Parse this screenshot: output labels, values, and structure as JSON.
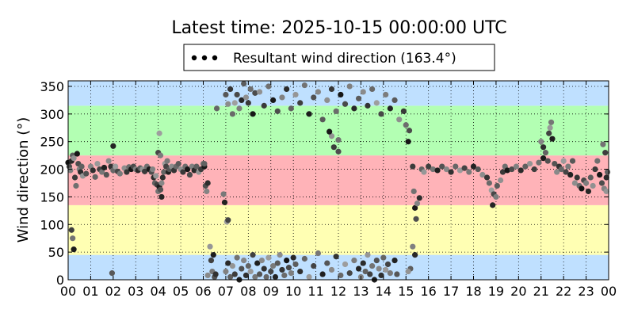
{
  "chart_data": {
    "type": "scatter",
    "title": "Latest time: 2025-10-15 00:00:00 UTC",
    "ylabel": "Wind direction (°)",
    "xlabel": "",
    "xlim": [
      0,
      24
    ],
    "ylim": [
      0,
      360
    ],
    "grid": true,
    "legend": {
      "placement": "top-center",
      "label": "Resultant wind direction (163.4°)",
      "marker_color": "#000000"
    },
    "x_tick_labels": [
      "00",
      "01",
      "02",
      "03",
      "04",
      "05",
      "06",
      "07",
      "08",
      "09",
      "10",
      "11",
      "12",
      "13",
      "14",
      "15",
      "16",
      "17",
      "18",
      "19",
      "20",
      "21",
      "22",
      "23",
      "00"
    ],
    "y_ticks": [
      0,
      50,
      100,
      150,
      200,
      250,
      300,
      350
    ],
    "bands": [
      {
        "from": 0,
        "to": 45,
        "color": "#bfe0ff"
      },
      {
        "from": 45,
        "to": 135,
        "color": "#ffffb3"
      },
      {
        "from": 135,
        "to": 225,
        "color": "#ffb3b8"
      },
      {
        "from": 225,
        "to": 315,
        "color": "#b3ffb3"
      },
      {
        "from": 315,
        "to": 360,
        "color": "#bfe0ff"
      }
    ],
    "series": [
      {
        "color_range": [
          "#111111",
          "#aaaaaa"
        ],
        "points": [
          [
            0.0,
            212
          ],
          [
            0.05,
            205
          ],
          [
            0.1,
            198
          ],
          [
            0.15,
            215
          ],
          [
            0.2,
            225
          ],
          [
            0.25,
            220
          ],
          [
            0.3,
            185
          ],
          [
            0.35,
            170
          ],
          [
            0.4,
            228
          ],
          [
            0.45,
            210
          ],
          [
            0.5,
            200
          ],
          [
            0.55,
            195
          ],
          [
            0.6,
            205
          ],
          [
            0.65,
            188
          ],
          [
            0.15,
            90
          ],
          [
            0.2,
            75
          ],
          [
            0.25,
            55
          ],
          [
            0.8,
            192
          ],
          [
            1.0,
            205
          ],
          [
            1.1,
            198
          ],
          [
            1.2,
            186
          ],
          [
            1.3,
            210
          ],
          [
            1.4,
            200
          ],
          [
            1.5,
            195
          ],
          [
            1.6,
            203
          ],
          [
            1.7,
            190
          ],
          [
            1.8,
            215
          ],
          [
            1.9,
            205
          ],
          [
            2.0,
            198
          ],
          [
            2.1,
            205
          ],
          [
            2.2,
            196
          ],
          [
            2.3,
            192
          ],
          [
            2.0,
            242
          ],
          [
            1.95,
            12
          ],
          [
            2.5,
            202
          ],
          [
            2.6,
            195
          ],
          [
            2.7,
            204
          ],
          [
            2.8,
            200
          ],
          [
            2.9,
            205
          ],
          [
            3.0,
            200
          ],
          [
            3.1,
            198
          ],
          [
            3.2,
            202
          ],
          [
            3.3,
            200
          ],
          [
            3.4,
            196
          ],
          [
            3.5,
            205
          ],
          [
            3.6,
            200
          ],
          [
            3.7,
            195
          ],
          [
            3.75,
            200
          ],
          [
            3.8,
            185
          ],
          [
            3.85,
            175
          ],
          [
            3.9,
            188
          ],
          [
            3.95,
            172
          ],
          [
            4.0,
            160
          ],
          [
            4.05,
            168
          ],
          [
            4.1,
            163
          ],
          [
            4.15,
            175
          ],
          [
            4.2,
            185
          ],
          [
            4.25,
            195
          ],
          [
            4.3,
            210
          ],
          [
            4.35,
            205
          ],
          [
            4.4,
            215
          ],
          [
            4.45,
            195
          ],
          [
            4.5,
            200
          ],
          [
            4.6,
            205
          ],
          [
            4.7,
            198
          ],
          [
            4.8,
            205
          ],
          [
            4.05,
            265
          ],
          [
            4.0,
            230
          ],
          [
            4.1,
            225
          ],
          [
            4.15,
            150
          ],
          [
            4.9,
            210
          ],
          [
            5.0,
            200
          ],
          [
            5.1,
            195
          ],
          [
            5.2,
            205
          ],
          [
            5.3,
            200
          ],
          [
            5.4,
            190
          ],
          [
            5.5,
            205
          ],
          [
            5.6,
            198
          ],
          [
            5.7,
            205
          ],
          [
            5.8,
            195
          ],
          [
            5.9,
            200
          ],
          [
            6.0,
            210
          ],
          [
            6.05,
            205
          ],
          [
            6.1,
            170
          ],
          [
            6.15,
            160
          ],
          [
            6.2,
            175
          ],
          [
            6.05,
            210
          ],
          [
            6.3,
            60
          ],
          [
            6.35,
            35
          ],
          [
            6.4,
            15
          ],
          [
            6.45,
            45
          ],
          [
            6.5,
            5
          ],
          [
            6.2,
            8
          ],
          [
            6.55,
            10
          ],
          [
            6.6,
            310
          ],
          [
            7.05,
            105
          ],
          [
            7.1,
            108
          ],
          [
            6.9,
            155
          ],
          [
            6.95,
            140
          ],
          [
            7.0,
            335
          ],
          [
            7.1,
            318
          ],
          [
            7.2,
            345
          ],
          [
            7.3,
            300
          ],
          [
            7.4,
            320
          ],
          [
            7.5,
            335
          ],
          [
            7.6,
            310
          ],
          [
            7.7,
            325
          ],
          [
            7.8,
            355
          ],
          [
            7.9,
            330
          ],
          [
            8.0,
            320
          ],
          [
            8.1,
            345
          ],
          [
            8.2,
            300
          ],
          [
            8.3,
            338
          ],
          [
            7.0,
            15
          ],
          [
            7.1,
            30
          ],
          [
            7.2,
            5
          ],
          [
            7.3,
            25
          ],
          [
            7.4,
            10
          ],
          [
            7.5,
            40
          ],
          [
            7.6,
            0
          ],
          [
            7.7,
            20
          ],
          [
            7.8,
            35
          ],
          [
            7.9,
            8
          ],
          [
            8.0,
            25
          ],
          [
            8.1,
            15
          ],
          [
            8.2,
            45
          ],
          [
            8.3,
            5
          ],
          [
            8.4,
            30
          ],
          [
            8.5,
            10
          ],
          [
            8.6,
            35
          ],
          [
            8.7,
            20
          ],
          [
            8.8,
            5
          ],
          [
            8.9,
            40
          ],
          [
            9.0,
            15
          ],
          [
            9.1,
            25
          ],
          [
            9.2,
            5
          ],
          [
            9.3,
            30
          ],
          [
            9.4,
            45
          ],
          [
            9.5,
            18
          ],
          [
            9.6,
            8
          ],
          [
            9.7,
            35
          ],
          [
            9.8,
            22
          ],
          [
            9.9,
            12
          ],
          [
            10.0,
            40
          ],
          [
            10.1,
            28
          ],
          [
            8.5,
            340
          ],
          [
            8.7,
            315
          ],
          [
            8.9,
            350
          ],
          [
            9.1,
            325
          ],
          [
            9.3,
            305
          ],
          [
            9.5,
            330
          ],
          [
            9.7,
            345
          ],
          [
            9.9,
            310
          ],
          [
            10.1,
            335
          ],
          [
            10.3,
            320
          ],
          [
            10.5,
            352
          ],
          [
            10.7,
            300
          ],
          [
            10.9,
            330
          ],
          [
            11.1,
            340
          ],
          [
            10.3,
            15
          ],
          [
            10.5,
            38
          ],
          [
            10.7,
            5
          ],
          [
            10.9,
            25
          ],
          [
            11.1,
            48
          ],
          [
            11.3,
            10
          ],
          [
            11.5,
            30
          ],
          [
            11.7,
            18
          ],
          [
            11.9,
            42
          ],
          [
            12.1,
            8
          ],
          [
            12.3,
            28
          ],
          [
            12.5,
            12
          ],
          [
            12.7,
            35
          ],
          [
            12.9,
            20
          ],
          [
            11.3,
            290
          ],
          [
            11.5,
            325
          ],
          [
            11.7,
            345
          ],
          [
            11.9,
            305
          ],
          [
            12.1,
            335
          ],
          [
            12.3,
            318
          ],
          [
            12.5,
            350
          ],
          [
            12.7,
            310
          ],
          [
            12.9,
            328
          ],
          [
            11.7,
            260
          ],
          [
            11.8,
            240
          ],
          [
            12.0,
            253
          ],
          [
            11.6,
            268
          ],
          [
            12.0,
            232
          ],
          [
            13.0,
            5
          ],
          [
            13.1,
            30
          ],
          [
            13.2,
            15
          ],
          [
            13.3,
            45
          ],
          [
            13.4,
            10
          ],
          [
            13.5,
            25
          ],
          [
            13.6,
            0
          ],
          [
            13.7,
            35
          ],
          [
            13.8,
            20
          ],
          [
            13.9,
            8
          ],
          [
            14.0,
            40
          ],
          [
            14.1,
            18
          ],
          [
            14.2,
            28
          ],
          [
            14.3,
            12
          ],
          [
            14.5,
            35
          ],
          [
            14.6,
            10
          ],
          [
            13.1,
            340
          ],
          [
            13.3,
            315
          ],
          [
            13.5,
            345
          ],
          [
            13.7,
            320
          ],
          [
            13.9,
            300
          ],
          [
            14.1,
            335
          ],
          [
            14.3,
            310
          ],
          [
            14.5,
            325
          ],
          [
            14.7,
            290
          ],
          [
            14.9,
            305
          ],
          [
            15.0,
            280
          ],
          [
            15.1,
            250
          ],
          [
            15.15,
            270
          ],
          [
            15.3,
            60
          ],
          [
            15.4,
            45
          ],
          [
            15.2,
            20
          ],
          [
            15.1,
            15
          ],
          [
            15.3,
            205
          ],
          [
            15.35,
            160
          ],
          [
            15.4,
            130
          ],
          [
            15.45,
            110
          ],
          [
            15.5,
            138
          ],
          [
            15.6,
            148
          ],
          [
            15.7,
            200
          ],
          [
            15.8,
            195
          ],
          [
            16.0,
            205
          ],
          [
            16.2,
            200
          ],
          [
            16.4,
            198
          ],
          [
            16.6,
            205
          ],
          [
            16.8,
            200
          ],
          [
            17.0,
            195
          ],
          [
            17.2,
            205
          ],
          [
            17.4,
            198
          ],
          [
            17.6,
            202
          ],
          [
            17.8,
            195
          ],
          [
            18.0,
            205
          ],
          [
            18.2,
            200
          ],
          [
            18.4,
            190
          ],
          [
            18.6,
            185
          ],
          [
            18.7,
            175
          ],
          [
            18.8,
            162
          ],
          [
            18.9,
            155
          ],
          [
            19.0,
            150
          ],
          [
            18.85,
            135
          ],
          [
            19.05,
            170
          ],
          [
            19.2,
            180
          ],
          [
            19.3,
            195
          ],
          [
            19.4,
            205
          ],
          [
            19.5,
            198
          ],
          [
            19.7,
            200
          ],
          [
            19.9,
            205
          ],
          [
            20.1,
            198
          ],
          [
            20.3,
            205
          ],
          [
            20.5,
            210
          ],
          [
            20.7,
            200
          ],
          [
            20.9,
            212
          ],
          [
            21.1,
            220
          ],
          [
            21.3,
            215
          ],
          [
            21.0,
            250
          ],
          [
            21.1,
            240
          ],
          [
            21.2,
            230
          ],
          [
            21.4,
            275
          ],
          [
            21.35,
            265
          ],
          [
            21.45,
            285
          ],
          [
            21.5,
            255
          ],
          [
            21.6,
            210
          ],
          [
            21.7,
            195
          ],
          [
            21.8,
            205
          ],
          [
            21.9,
            200
          ],
          [
            22.0,
            215
          ],
          [
            22.1,
            195
          ],
          [
            22.2,
            205
          ],
          [
            22.3,
            190
          ],
          [
            22.4,
            215
          ],
          [
            22.5,
            175
          ],
          [
            22.6,
            185
          ],
          [
            22.7,
            170
          ],
          [
            22.8,
            165
          ],
          [
            22.9,
            180
          ],
          [
            23.0,
            175
          ],
          [
            23.1,
            160
          ],
          [
            23.2,
            185
          ],
          [
            23.3,
            170
          ],
          [
            23.4,
            200
          ],
          [
            23.5,
            215
          ],
          [
            23.6,
            190
          ],
          [
            23.7,
            175
          ],
          [
            23.8,
            165
          ],
          [
            23.9,
            185
          ],
          [
            23.95,
            195
          ],
          [
            23.9,
            160
          ],
          [
            23.85,
            230
          ],
          [
            23.75,
            245
          ]
        ]
      }
    ]
  }
}
